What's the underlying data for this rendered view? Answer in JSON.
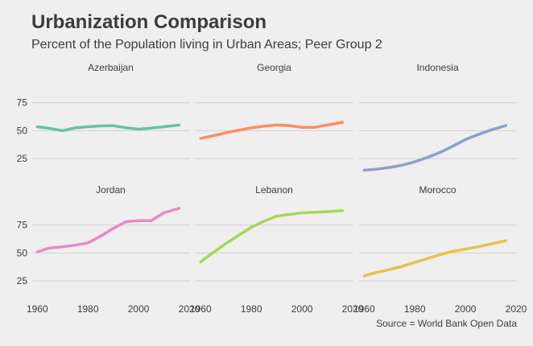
{
  "title": "Urbanization Comparison",
  "subtitle": "Percent of the Population living in Urban Areas; Peer Group 2",
  "caption": "Source = World Bank Open Data",
  "chart_data": {
    "type": "line",
    "facets": true,
    "title": "Urbanization Comparison",
    "subtitle": "Percent of the Population living in Urban Areas; Peer Group 2",
    "caption": "Source = World Bank Open Data",
    "xlim": [
      1958,
      2020
    ],
    "ylim": [
      12,
      95
    ],
    "x_ticks": [
      1960,
      1980,
      2000,
      2020
    ],
    "y_ticks": [
      25,
      50,
      75
    ],
    "grid": "horizontal",
    "legend": "none",
    "series": [
      {
        "name": "Azerbaijan",
        "color": "#66c2a5",
        "x": [
          1960,
          1965,
          1970,
          1975,
          1980,
          1985,
          1990,
          1995,
          2000,
          2005,
          2010,
          2016
        ],
        "values": [
          53.5,
          52,
          50,
          52.5,
          53.5,
          54.2,
          54.5,
          52.5,
          51.3,
          52.3,
          53.5,
          55
        ]
      },
      {
        "name": "Georgia",
        "color": "#fc8d62",
        "x": [
          1960,
          1965,
          1970,
          1975,
          1980,
          1985,
          1990,
          1995,
          2000,
          2005,
          2010,
          2016
        ],
        "values": [
          43,
          45.5,
          48,
          50.5,
          52.5,
          54,
          55,
          54.5,
          53,
          53,
          55,
          57.5
        ]
      },
      {
        "name": "Indonesia",
        "color": "#8da0cb",
        "x": [
          1960,
          1965,
          1970,
          1975,
          1980,
          1985,
          1990,
          1995,
          2000,
          2005,
          2010,
          2016
        ],
        "values": [
          14.5,
          15.5,
          17,
          19,
          22,
          26,
          30.5,
          36,
          42,
          46.5,
          50.5,
          54.5
        ]
      },
      {
        "name": "Jordan",
        "color": "#e78ac3",
        "x": [
          1960,
          1965,
          1970,
          1975,
          1980,
          1985,
          1990,
          1995,
          2000,
          2005,
          2010,
          2016
        ],
        "values": [
          51,
          54.5,
          55.5,
          57,
          59,
          65,
          72,
          78,
          79,
          79,
          86,
          90
        ]
      },
      {
        "name": "Lebanon",
        "color": "#a6d854",
        "x": [
          1960,
          1965,
          1970,
          1975,
          1980,
          1985,
          1990,
          1995,
          2000,
          2005,
          2010,
          2016
        ],
        "values": [
          42,
          50.5,
          58.5,
          66,
          73,
          78.5,
          83,
          84.5,
          86,
          86.5,
          87,
          88
        ]
      },
      {
        "name": "Morocco",
        "color": "#e5c446",
        "x": [
          1960,
          1965,
          1970,
          1975,
          1980,
          1985,
          1990,
          1995,
          2000,
          2005,
          2010,
          2016
        ],
        "values": [
          29.5,
          32.5,
          35,
          38,
          41.5,
          45,
          48.5,
          51.5,
          53.5,
          55.5,
          58,
          61
        ]
      }
    ]
  }
}
